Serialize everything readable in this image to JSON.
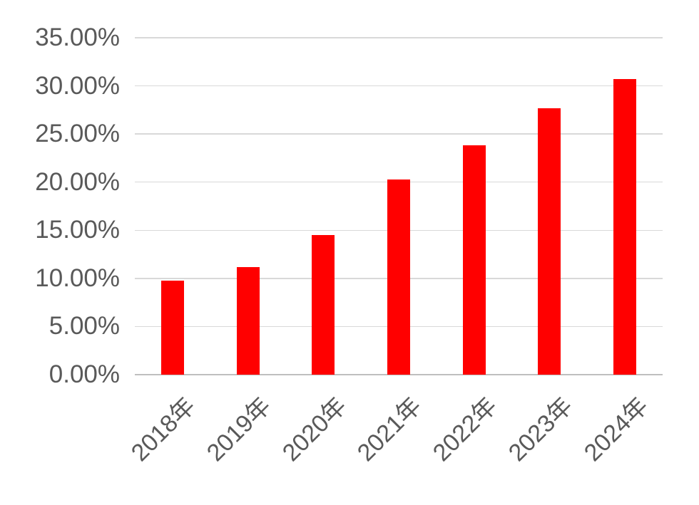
{
  "chart_data": {
    "type": "bar",
    "title": "",
    "xlabel": "",
    "ylabel": "",
    "categories": [
      "2018年",
      "2019年",
      "2020年",
      "2021年",
      "2022年",
      "2023年",
      "2024年"
    ],
    "values": [
      9.8,
      11.2,
      14.5,
      20.3,
      23.8,
      27.7,
      30.7
    ],
    "unit": "%",
    "ylim": [
      0,
      35
    ],
    "ytick_step": 5,
    "ytick_labels_top_to_bottom": [
      "35.00%",
      "30.00%",
      "25.00%",
      "20.00%",
      "15.00%",
      "10.00%",
      "5.00%",
      "0.00%"
    ],
    "grid": true,
    "legend_position": "none",
    "colors": {
      "bar": "#FF0000",
      "tick_label": "#595959",
      "gridline": "#D9D9D9",
      "axis_line": "#BFBFBF",
      "background": "#FFFFFF"
    }
  }
}
